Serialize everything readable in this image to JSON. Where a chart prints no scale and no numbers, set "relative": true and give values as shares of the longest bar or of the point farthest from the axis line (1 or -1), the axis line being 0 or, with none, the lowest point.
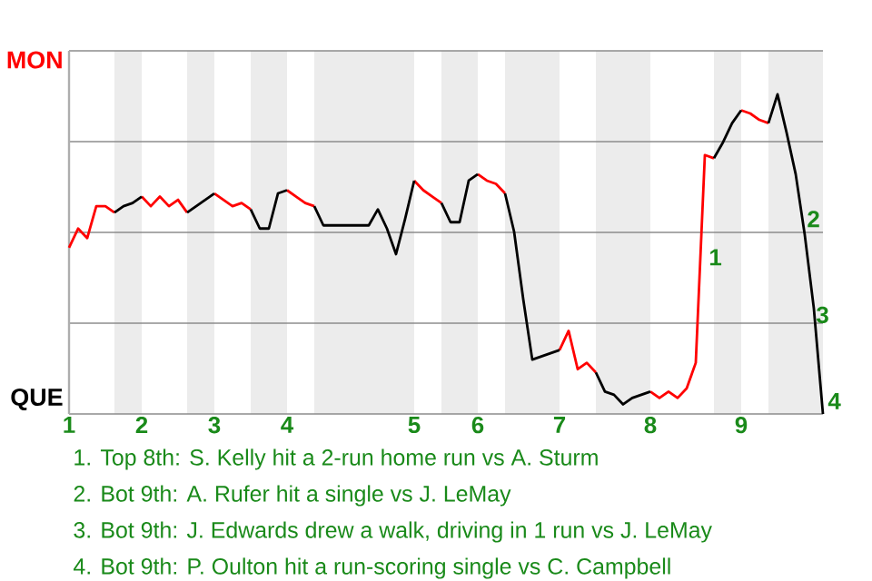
{
  "chart_data": {
    "type": "line",
    "relative": true,
    "categories": [
      "1",
      null,
      null,
      null,
      null,
      null,
      null,
      null,
      "2",
      null,
      null,
      null,
      null,
      null,
      null,
      null,
      "3",
      null,
      null,
      null,
      null,
      null,
      null,
      null,
      "4",
      null,
      null,
      null,
      null,
      null,
      null,
      null,
      null,
      null,
      null,
      null,
      null,
      null,
      "5",
      null,
      null,
      null,
      null,
      null,
      null,
      "6",
      null,
      null,
      null,
      null,
      null,
      null,
      null,
      null,
      "7",
      null,
      null,
      null,
      null,
      null,
      null,
      null,
      null,
      null,
      "8",
      null,
      null,
      null,
      null,
      null,
      null,
      null,
      null,
      null,
      "9",
      null,
      null,
      null,
      null,
      null,
      null,
      null,
      null,
      null
    ],
    "series": [
      {
        "color": "#ff0000",
        "values": [
          0.52,
          0.58,
          0.55,
          0.65,
          0.65,
          0.63,
          null,
          null,
          0.68,
          0.65,
          0.68,
          0.65,
          0.67,
          0.63,
          null,
          null,
          0.69,
          0.67,
          0.65,
          0.66,
          0.64,
          null,
          null,
          null,
          0.7,
          0.68,
          0.66,
          0.65,
          null,
          null,
          null,
          null,
          null,
          null,
          null,
          null,
          null,
          null,
          0.73,
          0.7,
          0.68,
          0.66,
          null,
          null,
          null,
          0.75,
          0.73,
          0.72,
          0.69,
          null,
          null,
          null,
          null,
          null,
          0.2,
          0.26,
          0.14,
          0.16,
          0.13,
          null,
          null,
          null,
          null,
          null,
          0.07,
          0.05,
          0.07,
          0.05,
          0.08,
          0.16,
          0.81,
          0.8,
          null,
          null,
          0.95,
          0.94,
          0.92,
          0.91,
          null,
          null,
          null,
          null,
          null,
          null
        ]
      },
      {
        "color": "#000000",
        "values": [
          null,
          null,
          null,
          null,
          null,
          0.63,
          0.65,
          0.66,
          0.68,
          null,
          null,
          null,
          null,
          0.63,
          0.65,
          0.67,
          0.69,
          null,
          null,
          null,
          0.64,
          0.58,
          0.58,
          0.69,
          0.7,
          null,
          null,
          0.65,
          0.59,
          0.59,
          0.59,
          0.59,
          0.59,
          0.59,
          0.64,
          0.58,
          0.5,
          0.61,
          0.73,
          null,
          null,
          0.66,
          0.6,
          0.6,
          0.73,
          0.75,
          null,
          null,
          0.69,
          0.57,
          0.36,
          0.17,
          0.18,
          0.19,
          0.2,
          null,
          null,
          null,
          0.13,
          0.07,
          0.06,
          0.03,
          0.05,
          0.06,
          0.07,
          null,
          null,
          null,
          null,
          null,
          null,
          0.8,
          0.85,
          0.91,
          0.95,
          null,
          null,
          0.91,
          1.0,
          0.88,
          0.75,
          0.56,
          0.33,
          0
        ]
      }
    ],
    "grid": "y",
    "annotations": [
      "MON",
      "QUE",
      "1",
      "2",
      "3",
      "4",
      "1. Top 8th: S. Kelly hit a 2-run home run vs A. Sturm",
      "2. Bot 9th: A. Rufer hit a single vs J. LeMay",
      "3. Bot 9th: J. Edwards drew a walk, driving in 1 run vs J. LeMay",
      "4. Bot 9th: P. Oulton hit a run-scoring single vs C. Campbell"
    ]
  }
}
